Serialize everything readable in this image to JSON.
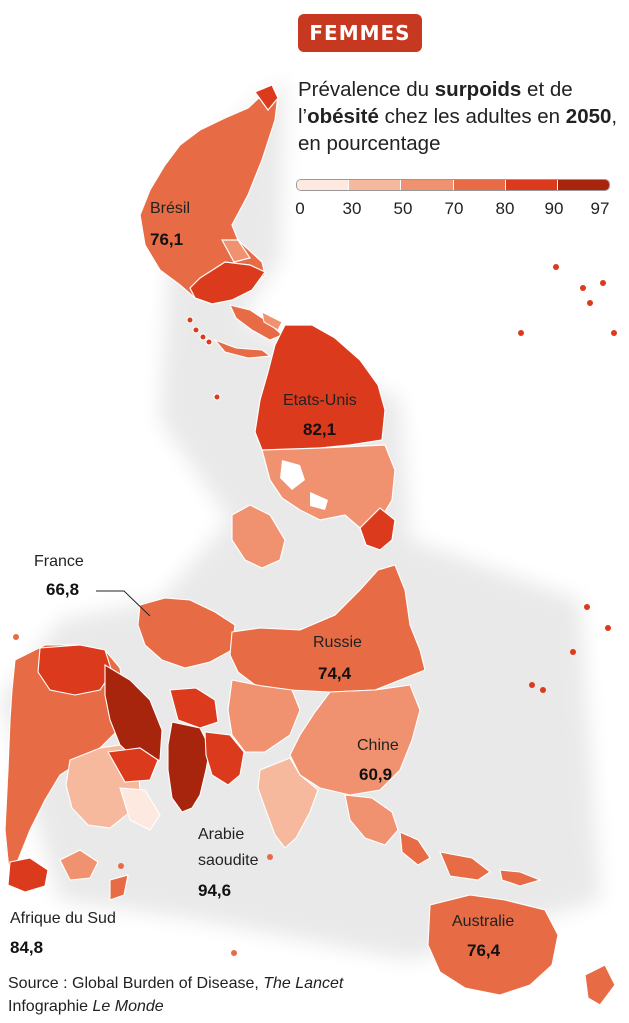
{
  "badge": "FEMMES",
  "title": {
    "part1": "Prévalence du ",
    "bold1": "surpoids",
    "part2": " et de l’",
    "bold2": "obésité",
    "part3": " chez les adultes en ",
    "bold3": "2050",
    "part4": ", en pourcentage"
  },
  "legend": {
    "ticks": [
      "0",
      "30",
      "50",
      "70",
      "80",
      "90",
      "97"
    ],
    "colors": [
      "#fde9df",
      "#f7b99e",
      "#f09270",
      "#e76c45",
      "#db3a1d",
      "#a8250d"
    ]
  },
  "regions": {
    "bresil": {
      "label": "Brésil",
      "value": "76,1"
    },
    "etats_unis": {
      "label": "Etats-Unis",
      "value": "82,1"
    },
    "france": {
      "label": "France",
      "value": "66,8"
    },
    "russie": {
      "label": "Russie",
      "value": "74,4"
    },
    "chine": {
      "label": "Chine",
      "value": "60,9"
    },
    "arabie": {
      "label_line1": "Arabie",
      "label_line2": "saoudite",
      "value": "94,6"
    },
    "afrique_du_sud": {
      "label": "Afrique du Sud",
      "value": "84,8"
    },
    "australie": {
      "label": "Australie",
      "value": "76,4"
    }
  },
  "source": {
    "line1_prefix": "Source : Global Burden of Disease, ",
    "line1_italic": "The Lancet",
    "line2_prefix": "Infographie ",
    "line2_italic": "Le Monde"
  }
}
